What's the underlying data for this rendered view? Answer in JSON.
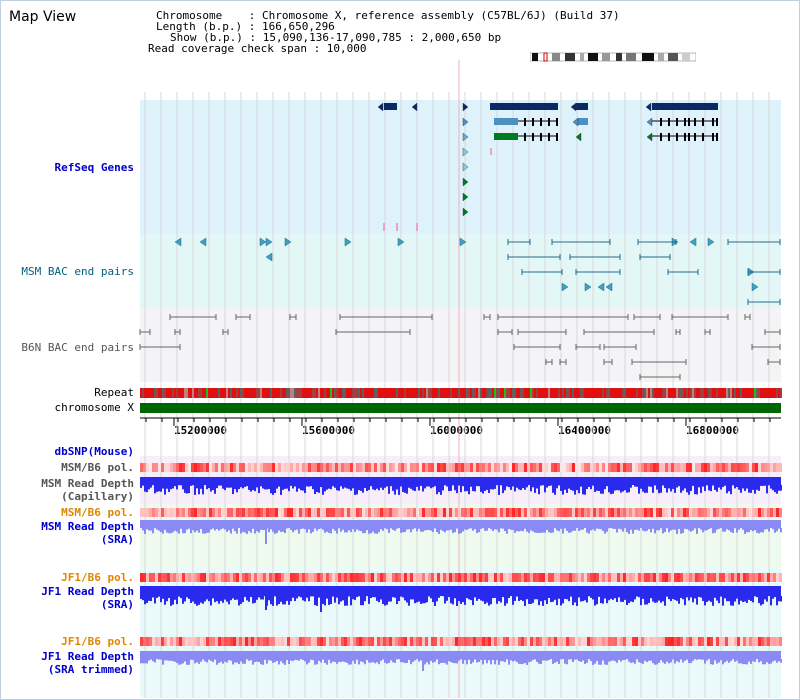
{
  "title": "Map View",
  "info": {
    "line1": "Chromosome    : Chromosome X, reference assembly (C57BL/6J) (Build 37)",
    "line2": "Length (b.p.) : 166,650,296",
    "line3": "Show (b.p.) : 15,090,136-17,090,785 : 2,000,650 bp",
    "line4": "Read coverage check span : 10,000"
  },
  "tracks": {
    "refseq": "RefSeq Genes",
    "msm_bac": "MSM BAC end pairs",
    "b6n_bac": "B6N BAC end pairs",
    "repeat": "Repeat",
    "chromosome": "chromosome X",
    "dbsnp": "dbSNP(Mouse)",
    "msm_pol1": "MSM/B6 pol.",
    "msm_depth_cap": "MSM Read Depth",
    "msm_depth_cap2": "(Capillary)",
    "msm_pol2": "MSM/B6 pol.",
    "msm_depth_sra": "MSM Read Depth",
    "msm_depth_sra2": "(SRA)",
    "jf1_pol1": "JF1/B6 pol.",
    "jf1_depth_sra": "JF1 Read Depth",
    "jf1_depth_sra2": "(SRA)",
    "jf1_pol2": "JF1/B6 pol.",
    "jf1_depth_trim": "JF1 Read Depth",
    "jf1_depth_trim2": "(SRA trimmed)"
  },
  "axis": {
    "ticks": [
      "15200000",
      "15600000",
      "16000000",
      "16400000",
      "16800000"
    ]
  },
  "colors": {
    "blue_label": "#0000cc",
    "teal_label": "#006080",
    "orange_label": "#dd8800",
    "gray_label": "#555555",
    "refseq_bg": "#ddf2fa",
    "msm_bg": "#e3f7f7",
    "b6n_bg": "#f4f4f7",
    "chrom": "#006600",
    "depth_blue": "#2a2aee",
    "depth_light": "#8a8af5"
  }
}
